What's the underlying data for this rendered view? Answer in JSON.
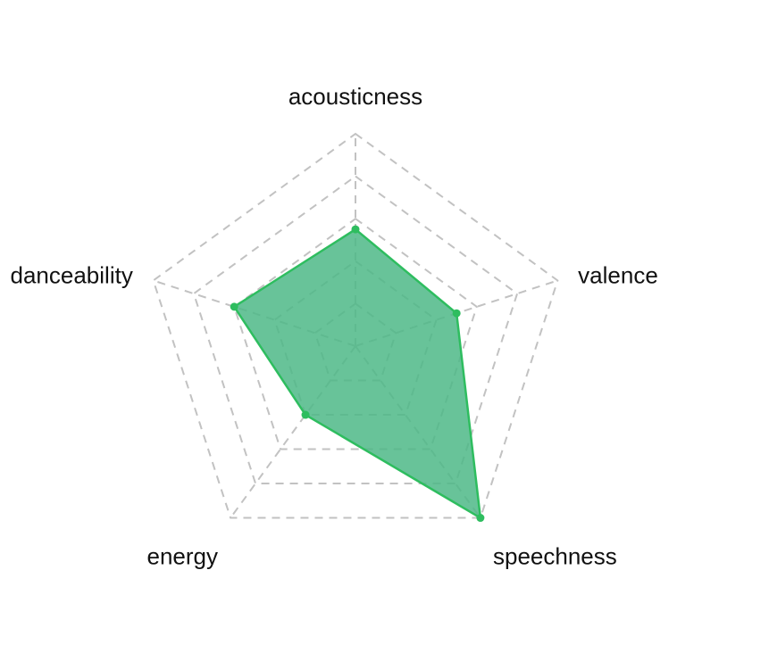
{
  "chart_data": {
    "type": "radar",
    "axes": [
      "acousticness",
      "valence",
      "speechness",
      "energy",
      "danceability"
    ],
    "series": [
      {
        "values": [
          0.55,
          0.5,
          1.0,
          0.4,
          0.6
        ],
        "color": "#2ebd5f",
        "fill_color": "#4db887",
        "fill_opacity": 0.85
      }
    ],
    "range": [
      0,
      1
    ],
    "grid_levels": 5,
    "grid": true,
    "legend": false
  }
}
